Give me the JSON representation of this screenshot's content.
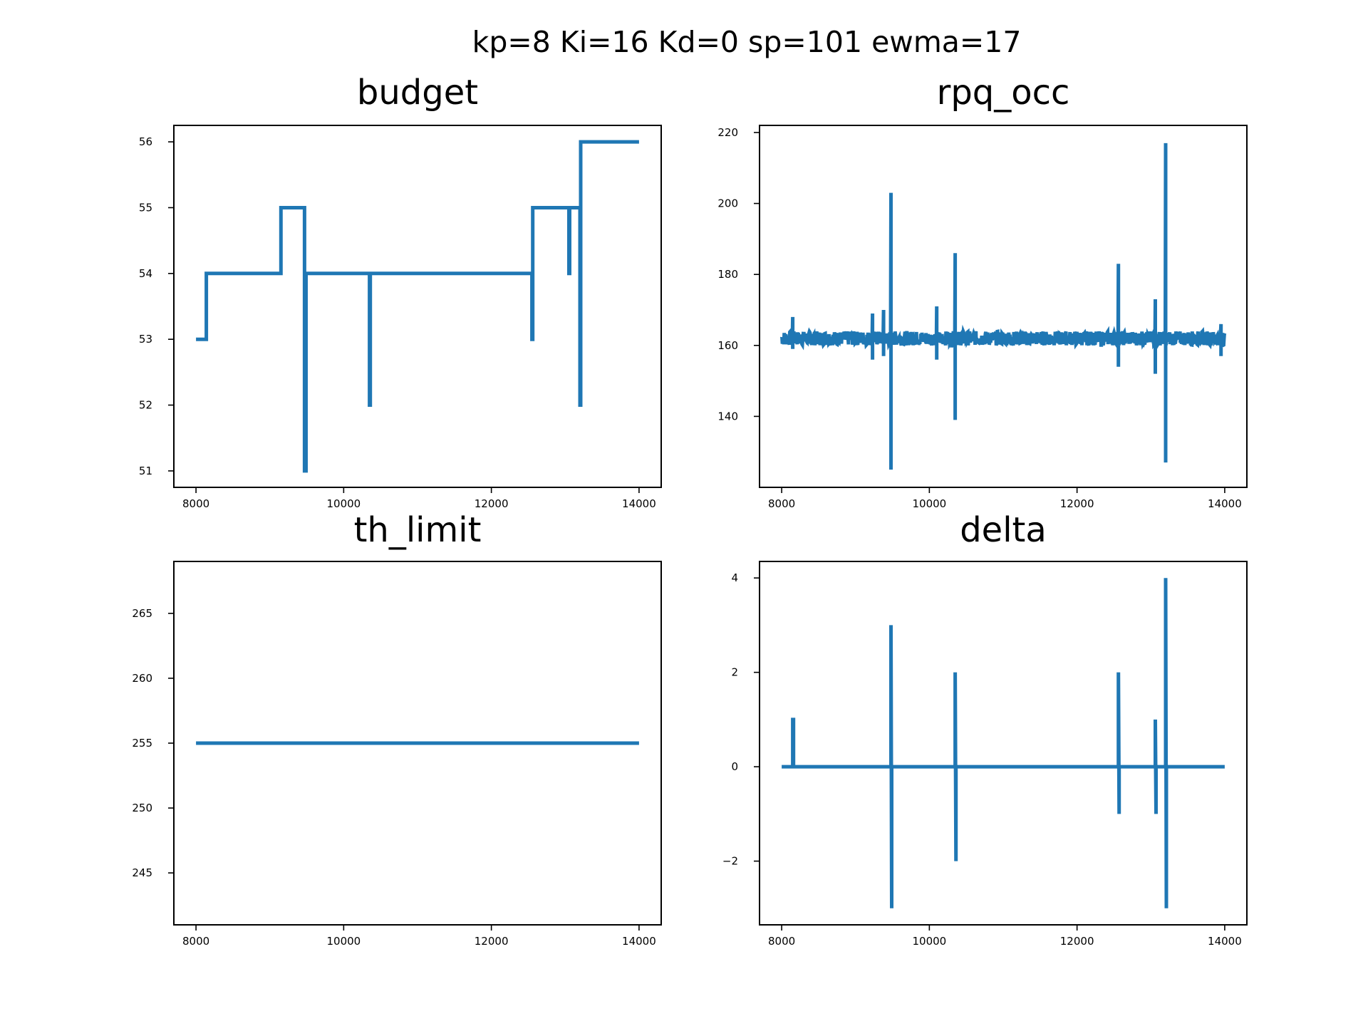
{
  "suptitle": "kp=8 Ki=16 Kd=0 sp=101 ewma=17",
  "line_color": "#1f77b4",
  "chart_data": [
    {
      "type": "line",
      "title": "budget",
      "xlim": [
        7700,
        14300
      ],
      "ylim": [
        50.75,
        56.25
      ],
      "xticks": [
        8000,
        10000,
        12000,
        14000
      ],
      "yticks": [
        51,
        52,
        53,
        54,
        55,
        56
      ],
      "series": [
        {
          "x": [
            8000,
            8140,
            8140,
            9150,
            9150,
            9470,
            9470,
            9490,
            9490,
            10350,
            10350,
            10360,
            10360,
            12550,
            12550,
            12560,
            12560,
            13050,
            13050,
            13060,
            13060,
            13200,
            13200,
            13210,
            13210,
            14000
          ],
          "y": [
            53,
            53,
            54,
            54,
            55,
            55,
            51,
            51,
            54,
            54,
            52,
            52,
            54,
            54,
            53,
            53,
            55,
            55,
            54,
            54,
            55,
            55,
            52,
            52,
            56,
            56
          ]
        }
      ]
    },
    {
      "type": "line",
      "title": "rpq_occ",
      "xlim": [
        7700,
        14300
      ],
      "ylim": [
        120,
        222
      ],
      "xticks": [
        8000,
        10000,
        12000,
        14000
      ],
      "yticks": [
        140,
        160,
        180,
        200,
        220
      ],
      "series": [
        {
          "baseline": 162,
          "noise": 2,
          "x_range": [
            8000,
            14000
          ],
          "spikes": [
            {
              "x": 8150,
              "low": 159,
              "high": 168
            },
            {
              "x": 9230,
              "low": 156,
              "high": 169
            },
            {
              "x": 9380,
              "low": 157,
              "high": 170
            },
            {
              "x": 9480,
              "low": 125,
              "high": 203
            },
            {
              "x": 10100,
              "low": 156,
              "high": 171
            },
            {
              "x": 10350,
              "low": 139,
              "high": 186
            },
            {
              "x": 12560,
              "low": 154,
              "high": 183
            },
            {
              "x": 13060,
              "low": 152,
              "high": 173
            },
            {
              "x": 13200,
              "low": 127,
              "high": 217
            },
            {
              "x": 13950,
              "low": 157,
              "high": 166
            }
          ]
        }
      ]
    },
    {
      "type": "line",
      "title": "th_limit",
      "xlim": [
        7700,
        14300
      ],
      "ylim": [
        241,
        269
      ],
      "xticks": [
        8000,
        10000,
        12000,
        14000
      ],
      "yticks": [
        245,
        250,
        255,
        260,
        265
      ],
      "series": [
        {
          "x": [
            8000,
            14000
          ],
          "y": [
            255,
            255
          ]
        }
      ]
    },
    {
      "type": "line",
      "title": "delta",
      "xlim": [
        7700,
        14300
      ],
      "ylim": [
        -3.35,
        4.35
      ],
      "xticks": [
        8000,
        10000,
        12000,
        14000
      ],
      "yticks": [
        -2,
        0,
        2,
        4
      ],
      "series": [
        {
          "x": [
            8000,
            8150,
            8150,
            8160,
            8160,
            9480,
            9480,
            9490,
            9490,
            10350,
            10350,
            10360,
            10360,
            12560,
            12560,
            12570,
            12570,
            13060,
            13060,
            13070,
            13070,
            13200,
            13200,
            13210,
            13210,
            14000
          ],
          "y": [
            0,
            0,
            1,
            1,
            0,
            0,
            3,
            -3,
            0,
            0,
            2,
            -2,
            0,
            0,
            2,
            -1,
            0,
            0,
            1,
            -1,
            0,
            0,
            4,
            -3,
            0,
            0
          ]
        }
      ]
    }
  ]
}
